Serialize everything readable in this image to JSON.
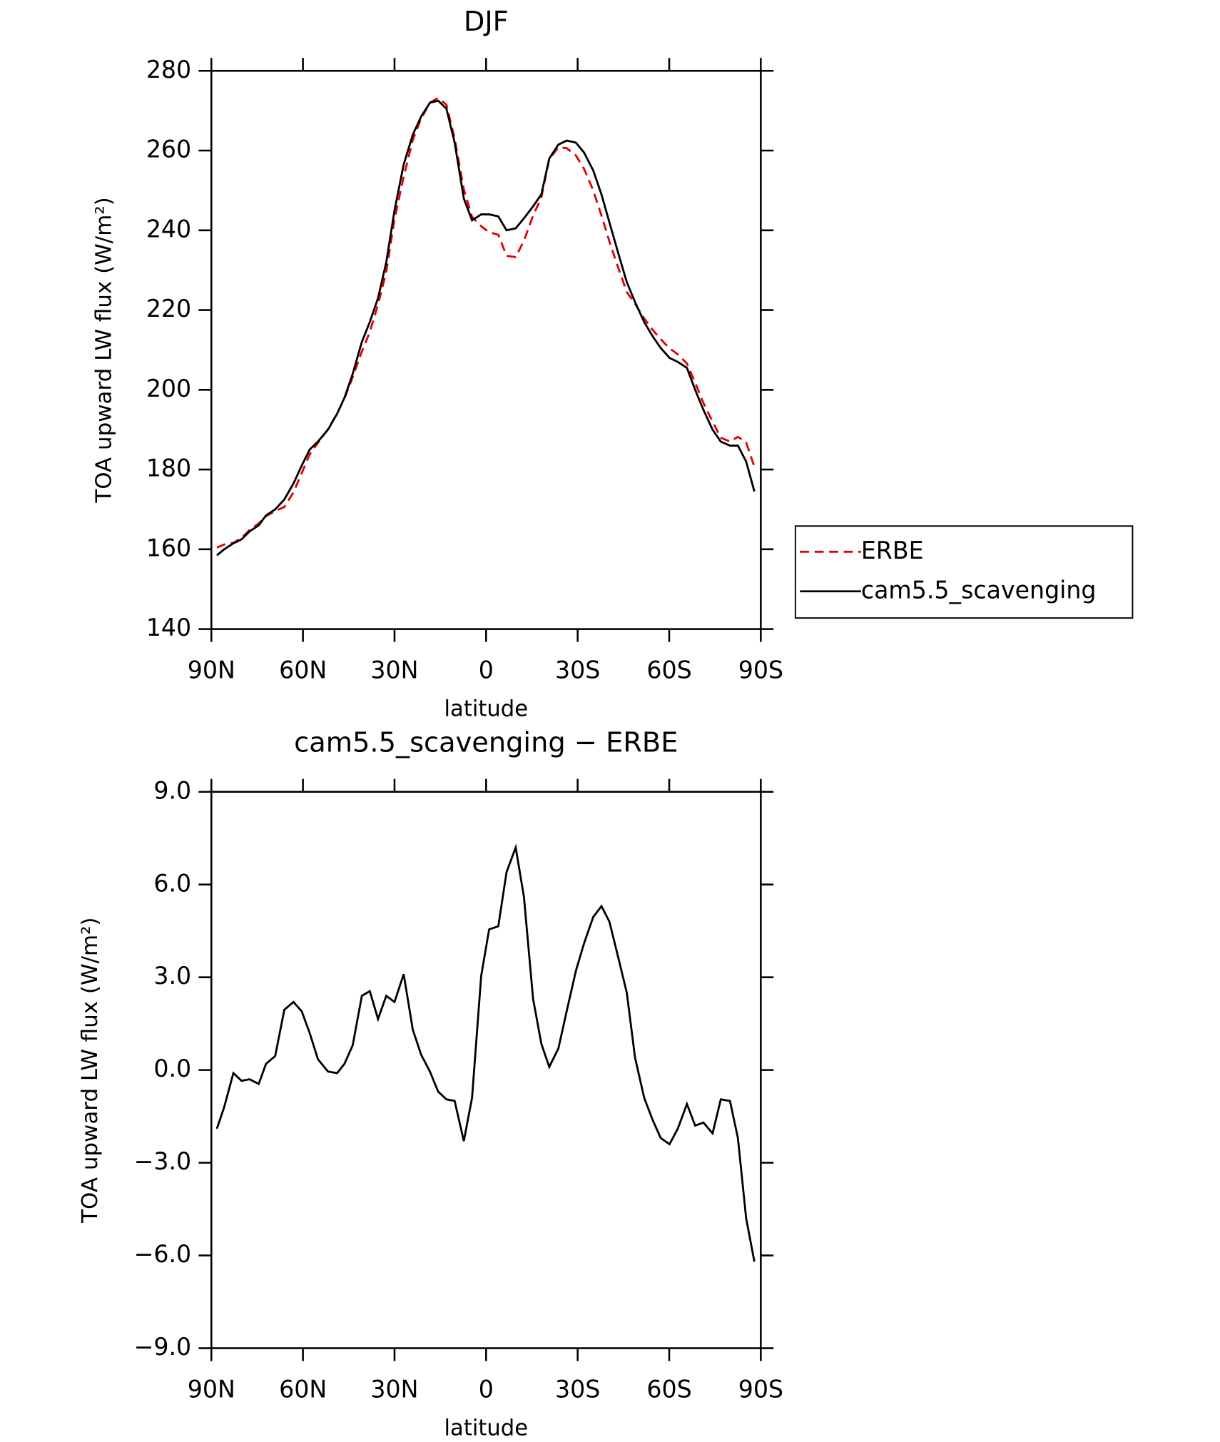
{
  "chart_data": [
    {
      "type": "line",
      "title": "DJF",
      "xlabel": "latitude",
      "ylabel": "TOA upward LW flux (W/m²)",
      "x": [
        -88.2,
        -85.8,
        -82.8,
        -80.1,
        -77.5,
        -74.5,
        -72.1,
        -69.1,
        -66.1,
        -63.1,
        -60.4,
        -57.8,
        -55.1,
        -51.8,
        -48.8,
        -46.4,
        -43.7,
        -40.7,
        -38.1,
        -35.4,
        -32.7,
        -30,
        -27,
        -24,
        -21.3,
        -18.4,
        -15.7,
        -13,
        -10.3,
        -7.3,
        -4.6,
        -1.6,
        1,
        4,
        6.7,
        9.7,
        12.4,
        15.4,
        18.1,
        20.7,
        23.7,
        26.4,
        29.4,
        32.1,
        35.1,
        37.8,
        40.4,
        43.4,
        46.1,
        48.8,
        51.8,
        54.5,
        57.2,
        60.1,
        62.8,
        65.8,
        68.5,
        71.2,
        74.2,
        76.9,
        79.9,
        82.5,
        85.2,
        87.9
      ],
      "series": [
        {
          "name": "ERBE",
          "color": "#e00000",
          "dash": true,
          "values": [
            160.4,
            161.2,
            161.6,
            162.9,
            164.8,
            166.5,
            168.3,
            169.6,
            170.6,
            174.3,
            179.1,
            183.8,
            186.7,
            190.1,
            194.1,
            197.8,
            203.2,
            209.6,
            214.5,
            221.4,
            229.6,
            242.8,
            253.4,
            262.7,
            268,
            272,
            273.2,
            271.5,
            263,
            250.3,
            243.4,
            241,
            239.5,
            238.9,
            233.6,
            233.3,
            237.4,
            243.7,
            248.2,
            257.9,
            260.8,
            260.6,
            258.8,
            255.4,
            250,
            243.7,
            237.2,
            230.4,
            224.5,
            221.6,
            217.9,
            215.1,
            212.7,
            210.4,
            208.9,
            206.6,
            201.8,
            196.7,
            192,
            188,
            187,
            188.2,
            186.8,
            180.7
          ]
        },
        {
          "name": "cam5.5_scavenging",
          "color": "#000000",
          "dash": false,
          "values": [
            158.5,
            160,
            161.5,
            162.5,
            164.5,
            166,
            168.5,
            170,
            172.5,
            176.5,
            181,
            185,
            187,
            190,
            194,
            198,
            204,
            212,
            217,
            223,
            232,
            245,
            256.5,
            264,
            268.5,
            272,
            272.5,
            270.5,
            262,
            248,
            242.5,
            244,
            244,
            243.5,
            240,
            240.5,
            243,
            246,
            249,
            258,
            261.5,
            262.5,
            262,
            259.5,
            255,
            249,
            242,
            234,
            227,
            222,
            217,
            213.5,
            210.5,
            208,
            207,
            205.5,
            200,
            195,
            190,
            187,
            186,
            186,
            182,
            174.5
          ]
        }
      ],
      "xlim": [
        -90,
        90
      ],
      "xticks": [
        {
          "value": -90,
          "label": "90N"
        },
        {
          "value": -60,
          "label": "60N"
        },
        {
          "value": -30,
          "label": "30N"
        },
        0,
        {
          "value": 30,
          "label": "30S"
        },
        {
          "value": 60,
          "label": "60S"
        },
        {
          "value": 90,
          "label": "90S"
        }
      ],
      "ylim": [
        140,
        280
      ],
      "yticks": [
        140,
        160,
        180,
        200,
        220,
        240,
        260,
        280
      ],
      "legend": "right"
    },
    {
      "type": "line",
      "title": "cam5.5_scavenging − ERBE",
      "xlabel": "latitude",
      "ylabel": "TOA upward LW flux (W/m²)",
      "x": [
        -88.2,
        -85.8,
        -82.8,
        -80.1,
        -77.5,
        -74.5,
        -72.1,
        -69.1,
        -66.1,
        -63.1,
        -60.4,
        -57.8,
        -55.1,
        -51.8,
        -48.8,
        -46.4,
        -43.7,
        -40.7,
        -38.1,
        -35.4,
        -32.7,
        -30,
        -27,
        -24,
        -21.3,
        -18.4,
        -15.7,
        -13,
        -10.3,
        -7.3,
        -4.6,
        -1.6,
        1,
        4,
        6.7,
        9.7,
        12.4,
        15.4,
        18.1,
        20.7,
        23.7,
        26.4,
        29.4,
        32.1,
        35.1,
        37.8,
        40.4,
        43.4,
        46.1,
        48.8,
        51.8,
        54.5,
        57.2,
        60.1,
        62.8,
        65.8,
        68.5,
        71.2,
        74.2,
        76.9,
        79.9,
        82.5,
        85.2,
        87.9
      ],
      "values": [
        -1.9,
        -1.2,
        -0.1,
        -0.35,
        -0.3,
        -0.45,
        0.2,
        0.45,
        1.95,
        2.2,
        1.9,
        1.2,
        0.35,
        -0.05,
        -0.1,
        0.2,
        0.8,
        2.4,
        2.55,
        1.65,
        2.4,
        2.2,
        3.1,
        1.3,
        0.5,
        -0.05,
        -0.7,
        -0.95,
        -1,
        -2.3,
        -0.9,
        3.05,
        4.55,
        4.65,
        6.4,
        7.2,
        5.6,
        2.3,
        0.85,
        0.1,
        0.7,
        1.9,
        3.2,
        4.1,
        4.95,
        5.3,
        4.8,
        3.6,
        2.5,
        0.4,
        -0.9,
        -1.6,
        -2.2,
        -2.4,
        -1.9,
        -1.1,
        -1.8,
        -1.7,
        -2.05,
        -0.95,
        -1,
        -2.2,
        -4.8,
        -6.2
      ],
      "color": "#000000",
      "xlim": [
        -90,
        90
      ],
      "xticks": [
        {
          "value": -90,
          "label": "90N"
        },
        {
          "value": -60,
          "label": "60N"
        },
        {
          "value": -30,
          "label": "30N"
        },
        0,
        {
          "value": 30,
          "label": "30S"
        },
        {
          "value": 60,
          "label": "60S"
        },
        {
          "value": 90,
          "label": "90S"
        }
      ],
      "ylim": [
        -9,
        9
      ],
      "yticks": [
        {
          "value": -9,
          "label": "−9.0"
        },
        {
          "value": -6,
          "label": "−6.0"
        },
        {
          "value": -3,
          "label": "−3.0"
        },
        {
          "value": 0,
          "label": "0.0"
        },
        {
          "value": 3,
          "label": "3.0"
        },
        {
          "value": 6,
          "label": "6.0"
        },
        {
          "value": 9,
          "label": "9.0"
        }
      ]
    }
  ]
}
